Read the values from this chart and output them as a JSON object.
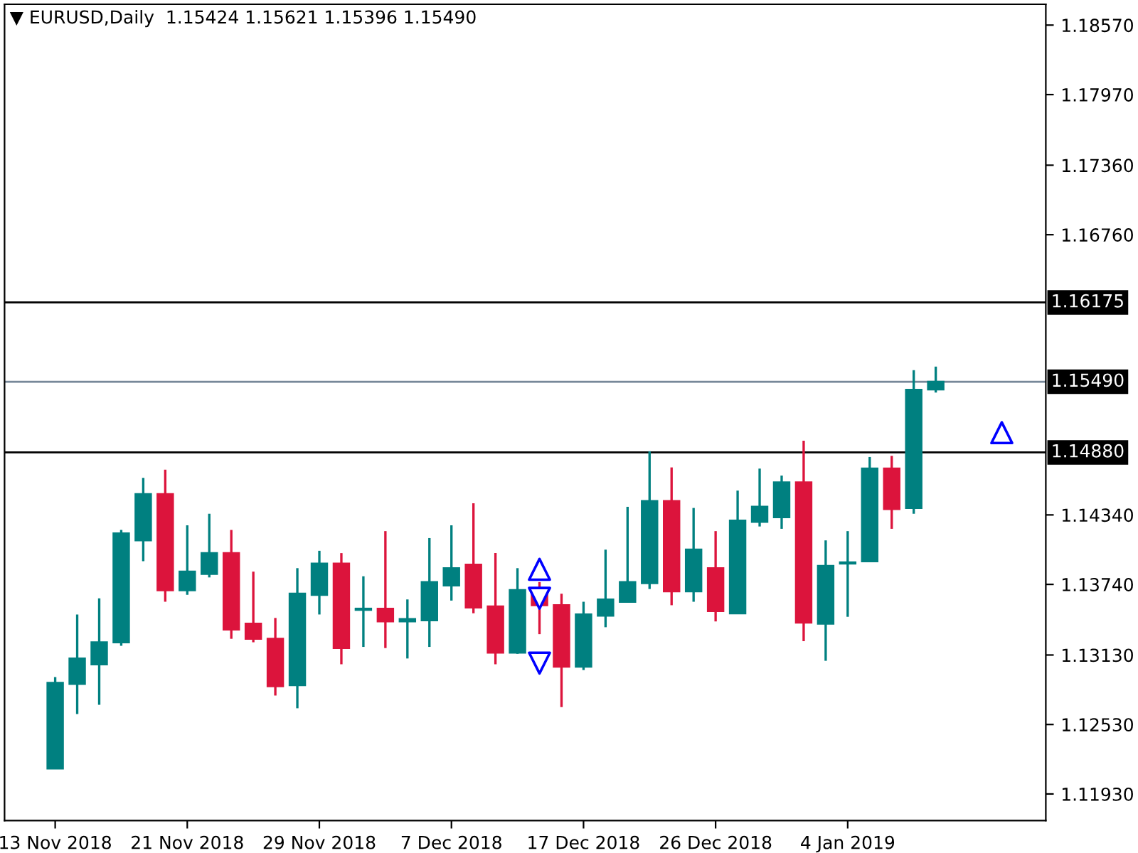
{
  "chart_data": {
    "type": "candlestick",
    "title": "▼ EURUSD,Daily  1.15424 1.15621 1.15396 1.15490",
    "categories": [
      "13 Nov 2018",
      null,
      null,
      null,
      null,
      null,
      "21 Nov 2018",
      null,
      null,
      null,
      null,
      null,
      "29 Nov 2018",
      null,
      null,
      null,
      null,
      null,
      "7 Dec 2018",
      null,
      null,
      null,
      null,
      null,
      "17 Dec 2018",
      null,
      null,
      null,
      null,
      null,
      "26 Dec 2018",
      null,
      null,
      null,
      null,
      null,
      "4 Jan 2019",
      null,
      null,
      null,
      null,
      null,
      null,
      null
    ],
    "ohlc": [
      [
        1.1215,
        1.1294,
        1.1215,
        1.1289
      ],
      [
        1.1288,
        1.1348,
        1.1262,
        1.131
      ],
      [
        1.1305,
        1.1362,
        1.127,
        1.1324
      ],
      [
        1.1324,
        1.1421,
        1.1321,
        1.1418
      ],
      [
        1.1412,
        1.1466,
        1.1394,
        1.1452
      ],
      [
        1.1452,
        1.1473,
        1.1359,
        1.1369
      ],
      [
        1.1369,
        1.1425,
        1.1365,
        1.1385
      ],
      [
        1.1383,
        1.1435,
        1.138,
        1.1401
      ],
      [
        1.1401,
        1.1421,
        1.1327,
        1.1335
      ],
      [
        1.134,
        1.1385,
        1.1324,
        1.1327
      ],
      [
        1.1327,
        1.1345,
        1.1278,
        1.1286
      ],
      [
        1.1287,
        1.1388,
        1.1267,
        1.1366
      ],
      [
        1.1365,
        1.1403,
        1.1348,
        1.1392
      ],
      [
        1.1392,
        1.1401,
        1.1305,
        1.1319
      ],
      [
        1.1352,
        1.1381,
        1.132,
        1.1353
      ],
      [
        1.1353,
        1.142,
        1.1319,
        1.1342
      ],
      [
        1.1342,
        1.1361,
        1.131,
        1.1344
      ],
      [
        1.1343,
        1.1414,
        1.132,
        1.1376
      ],
      [
        1.1373,
        1.1425,
        1.136,
        1.1388
      ],
      [
        1.1391,
        1.1444,
        1.1349,
        1.1354
      ],
      [
        1.1355,
        1.1401,
        1.1305,
        1.1315
      ],
      [
        1.1315,
        1.1388,
        1.1314,
        1.1369
      ],
      [
        1.1369,
        1.1376,
        1.1331,
        1.1356
      ],
      [
        1.1356,
        1.1366,
        1.1268,
        1.1303
      ],
      [
        1.1303,
        1.1359,
        1.13,
        1.1348
      ],
      [
        1.1347,
        1.1404,
        1.1337,
        1.1361
      ],
      [
        1.1359,
        1.1441,
        1.1359,
        1.1376
      ],
      [
        1.1375,
        1.1489,
        1.137,
        1.1446
      ],
      [
        1.1446,
        1.1475,
        1.1356,
        1.1368
      ],
      [
        1.1368,
        1.144,
        1.1359,
        1.1404
      ],
      [
        1.1388,
        1.142,
        1.1342,
        1.1351
      ],
      [
        1.1349,
        1.1455,
        1.1349,
        1.1429
      ],
      [
        1.1428,
        1.1474,
        1.1424,
        1.1441
      ],
      [
        1.1432,
        1.1468,
        1.1422,
        1.1462
      ],
      [
        1.1462,
        1.1498,
        1.1325,
        1.1341
      ],
      [
        1.134,
        1.1412,
        1.1308,
        1.139
      ],
      [
        1.1392,
        1.142,
        1.1346,
        1.1393
      ],
      [
        1.1394,
        1.1484,
        1.1394,
        1.1474
      ],
      [
        1.1474,
        1.1485,
        1.1422,
        1.1439
      ],
      [
        1.144,
        1.1559,
        1.1435,
        1.1542
      ],
      [
        1.15424,
        1.15621,
        1.15396,
        1.1549
      ],
      null,
      null,
      null
    ],
    "colors": [
      "#008080",
      "#008080",
      "#008080",
      "#008080",
      "#008080",
      "#dc143c",
      "#008080",
      "#008080",
      "#dc143c",
      "#dc143c",
      "#dc143c",
      "#008080",
      "#008080",
      "#dc143c",
      "#008080",
      "#dc143c",
      "#008080",
      "#008080",
      "#008080",
      "#dc143c",
      "#dc143c",
      "#008080",
      "#dc143c",
      "#dc143c",
      "#008080",
      "#008080",
      "#008080",
      "#008080",
      "#dc143c",
      "#008080",
      "#dc143c",
      "#008080",
      "#008080",
      "#008080",
      "#dc143c",
      "#008080",
      "#008080",
      "#008080",
      "#dc143c",
      "#008080",
      "#008080",
      null,
      null,
      null
    ],
    "series": [
      {
        "type": "scatter",
        "marker": "triangle",
        "color": "#0000ff",
        "values": [
          null,
          null,
          null,
          null,
          null,
          null,
          null,
          null,
          null,
          null,
          null,
          null,
          null,
          null,
          null,
          null,
          null,
          null,
          null,
          null,
          null,
          null,
          1.1387,
          null,
          null,
          null,
          null,
          null,
          null,
          null,
          null,
          null,
          null,
          null,
          null,
          null,
          null,
          null,
          null,
          null,
          null,
          null,
          null,
          1.1505
        ]
      },
      {
        "type": "scatter",
        "color": "#0000ff",
        "values": [
          null,
          null,
          null,
          null,
          null,
          null,
          null,
          null,
          null,
          null,
          null,
          null,
          null,
          null,
          null,
          null,
          null,
          null,
          null,
          null,
          null,
          null,
          1.1362,
          null,
          null,
          null,
          null,
          null,
          null,
          null,
          null,
          null,
          null,
          null,
          null,
          null,
          null,
          null,
          null,
          null,
          null,
          null,
          null,
          null
        ]
      },
      {
        "type": "scatter",
        "color": "#0000ff",
        "values": [
          null,
          null,
          null,
          null,
          null,
          null,
          null,
          null,
          null,
          null,
          null,
          null,
          null,
          null,
          null,
          null,
          null,
          null,
          null,
          null,
          null,
          null,
          1.1306,
          null,
          null,
          null,
          null,
          null,
          null,
          null,
          null,
          null,
          null,
          null,
          null,
          null,
          null,
          null,
          null,
          null,
          null,
          null,
          null,
          null
        ]
      }
    ],
    "ylim": [
      1.117,
      1.1875
    ],
    "yticks": [
      {
        "value": 1.1857,
        "label": "1.18570"
      },
      {
        "value": 1.1797,
        "label": "1.17970"
      },
      {
        "value": 1.1736,
        "label": "1.17360"
      },
      {
        "value": 1.1676,
        "label": "1.16760"
      },
      {
        "value": 1.1434,
        "label": "1.14340"
      },
      {
        "value": 1.1374,
        "label": "1.13740"
      },
      {
        "value": 1.1313,
        "label": "1.13130"
      },
      {
        "value": 1.1253,
        "label": "1.12530"
      },
      {
        "value": 1.1193,
        "label": "1.11930"
      }
    ],
    "ref_lines": [
      {
        "axis": "y",
        "value": 1.16175,
        "label": "1.16175",
        "color": "#000000"
      },
      {
        "axis": "y",
        "value": 1.1549,
        "label": "1.15490",
        "color": "#778899"
      },
      {
        "axis": "y",
        "value": 1.1488,
        "label": "1.14880",
        "color": "#000000"
      }
    ],
    "grid": false,
    "legend": false
  }
}
